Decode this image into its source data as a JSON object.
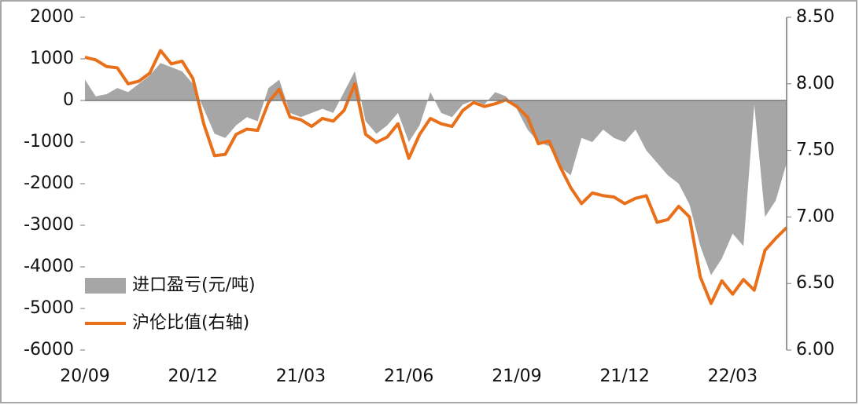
{
  "chart_data": {
    "type": "combo",
    "categories": [
      "20/09",
      null,
      null,
      null,
      null,
      null,
      null,
      null,
      null,
      null,
      "20/12",
      null,
      null,
      null,
      null,
      null,
      null,
      null,
      null,
      null,
      "21/03",
      null,
      null,
      null,
      null,
      null,
      null,
      null,
      null,
      null,
      "21/06",
      null,
      null,
      null,
      null,
      null,
      null,
      null,
      null,
      null,
      "21/09",
      null,
      null,
      null,
      null,
      null,
      null,
      null,
      null,
      null,
      "21/12",
      null,
      null,
      null,
      null,
      null,
      null,
      null,
      null,
      null,
      "22/03",
      null,
      null,
      null,
      null,
      null
    ],
    "series": [
      {
        "name": "进口盈亏(元/吨)",
        "type": "area",
        "color": "#a6a6a6",
        "values": [
          500,
          100,
          150,
          300,
          200,
          400,
          600,
          900,
          800,
          700,
          400,
          -200,
          -800,
          -900,
          -600,
          -400,
          -500,
          300,
          500,
          -300,
          -400,
          -300,
          -200,
          -300,
          200,
          700,
          -500,
          -800,
          -600,
          -300,
          -1000,
          -600,
          200,
          -300,
          -400,
          -100,
          0,
          -100,
          200,
          100,
          -200,
          -700,
          -1000,
          -1100,
          -1600,
          -1800,
          -900,
          -1000,
          -700,
          -900,
          -1000,
          -700,
          -1200,
          -1500,
          -1800,
          -2000,
          -2500,
          -3500,
          -4200,
          -3800,
          -3200,
          -3500,
          -100,
          -2800,
          -2400,
          -1500
        ]
      },
      {
        "name": "沪伦比值(右轴)",
        "type": "line",
        "axis": "y2",
        "color": "#e8701a",
        "values": [
          8.2,
          8.18,
          8.13,
          8.12,
          8.0,
          8.02,
          8.08,
          8.25,
          8.15,
          8.17,
          8.04,
          7.7,
          7.46,
          7.47,
          7.62,
          7.66,
          7.65,
          7.86,
          7.96,
          7.75,
          7.73,
          7.68,
          7.74,
          7.72,
          7.8,
          8.0,
          7.62,
          7.56,
          7.6,
          7.7,
          7.44,
          7.62,
          7.74,
          7.7,
          7.68,
          7.8,
          7.86,
          7.83,
          7.85,
          7.88,
          7.83,
          7.75,
          7.55,
          7.57,
          7.38,
          7.22,
          7.1,
          7.18,
          7.16,
          7.15,
          7.1,
          7.14,
          7.16,
          6.96,
          6.98,
          7.08,
          7.0,
          6.55,
          6.35,
          6.52,
          6.42,
          6.53,
          6.45,
          6.75,
          6.84,
          6.92
        ]
      }
    ],
    "ylim": [
      -6000,
      2000
    ],
    "yticks": [
      2000,
      1000,
      0,
      -1000,
      -2000,
      -3000,
      -4000,
      -5000,
      -6000
    ],
    "y2lim": [
      6.0,
      8.5
    ],
    "y2ticks": [
      {
        "value": 8.5,
        "label": "8.50"
      },
      {
        "value": 8.0,
        "label": "8.00"
      },
      {
        "value": 7.5,
        "label": "7.50"
      },
      {
        "value": 7.0,
        "label": "7.00"
      },
      {
        "value": 6.5,
        "label": "6.50"
      },
      {
        "value": 6.0,
        "label": "6.00"
      }
    ],
    "legend": "lower left"
  }
}
